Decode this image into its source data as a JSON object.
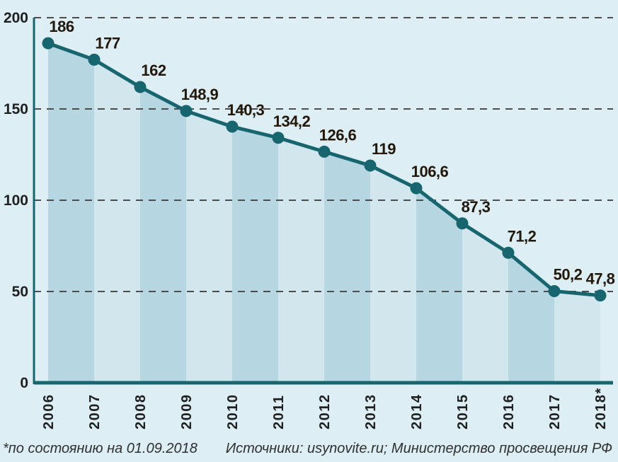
{
  "chart_data": {
    "type": "area",
    "title": "",
    "categories": [
      "2006",
      "2007",
      "2008",
      "2009",
      "2010",
      "2011",
      "2012",
      "2013",
      "2014",
      "2015",
      "2016",
      "2017",
      "2018*"
    ],
    "values": [
      186,
      177,
      162,
      148.9,
      140.3,
      134.2,
      126.6,
      119,
      106.6,
      87.3,
      71.2,
      50.2,
      47.8
    ],
    "value_labels": [
      "186",
      "177",
      "162",
      "148,9",
      "140,3",
      "134,2",
      "126,6",
      "119",
      "106,6",
      "87,3",
      "71,2",
      "50,2",
      "47,8"
    ],
    "ylim": [
      0,
      200
    ],
    "yticks": [
      0,
      50,
      100,
      150,
      200
    ],
    "xlabel": "",
    "ylabel": "",
    "legend": "none",
    "grid": "horizontal-dashed",
    "colors": {
      "background": "#ddeef5",
      "line": "#17656f",
      "marker": "#17656f",
      "band_dark": "#b6d6e2",
      "band_light": "#d2e6ee",
      "grid": "#4c4c4c",
      "value_label": "#221708",
      "axis_text": "#1f1f1f"
    }
  },
  "footnote": {
    "note": "*по состоянию на 01.09.2018",
    "sources": "Источники: usynovite.ru; Министерство просвещения РФ"
  }
}
